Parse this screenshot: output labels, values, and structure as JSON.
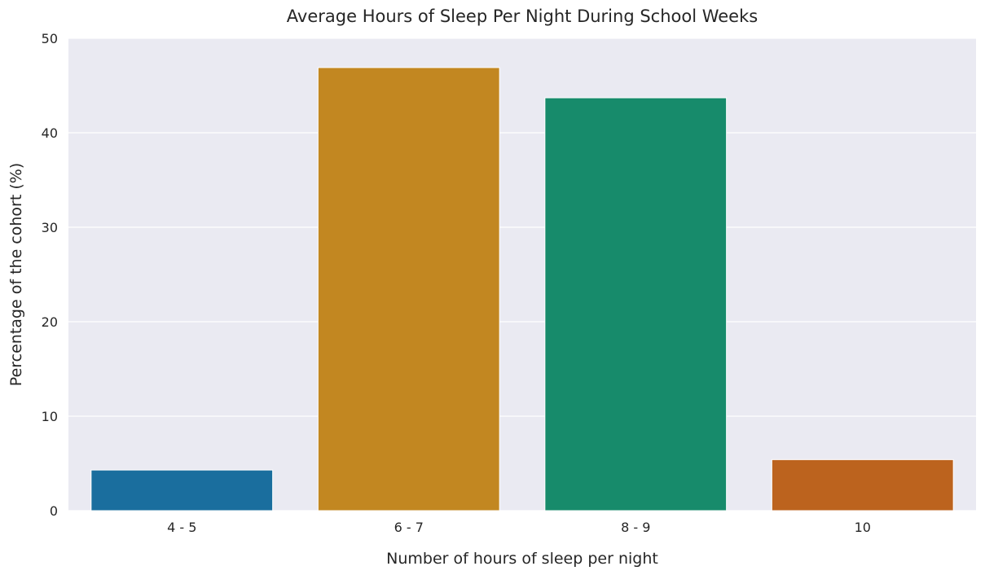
{
  "chart_data": {
    "type": "bar",
    "title": "Average Hours of Sleep Per Night During School Weeks",
    "xlabel": "Number of hours of sleep per night",
    "ylabel": "Percentage of the cohort (%)",
    "categories": [
      "4 - 5",
      "6 - 7",
      "8 - 9",
      "10"
    ],
    "values": [
      4.3,
      46.9,
      43.7,
      5.4
    ],
    "colors": [
      "#1a6e9e",
      "#c28721",
      "#178b6b",
      "#bc631e"
    ],
    "ylim": [
      0,
      50
    ],
    "yticks": [
      "0",
      "10",
      "20",
      "30",
      "40",
      "50"
    ],
    "grid": true,
    "background": "#eaeaf2"
  }
}
